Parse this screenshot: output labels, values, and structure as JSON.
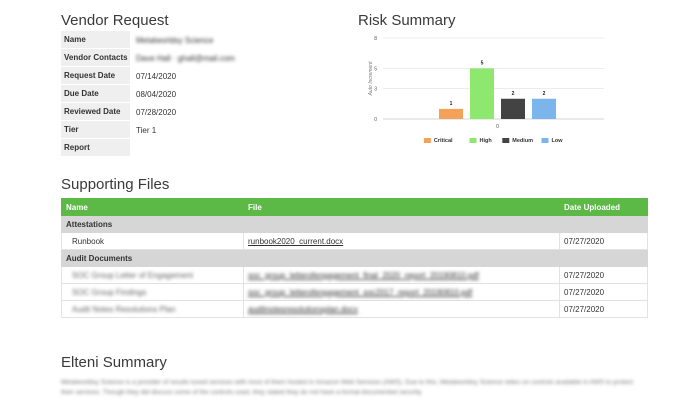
{
  "vendor_request": {
    "title": "Vendor Request",
    "rows": [
      {
        "label": "Name",
        "value": "Metalworldsy Science"
      },
      {
        "label": "Vendor Contacts",
        "value": "Dave Hall · ghall@mail.com"
      },
      {
        "label": "Request Date",
        "value": "07/14/2020"
      },
      {
        "label": "Due Date",
        "value": "08/04/2020"
      },
      {
        "label": "Reviewed Date",
        "value": "07/28/2020"
      },
      {
        "label": "Tier",
        "value": "Tier 1"
      },
      {
        "label": "Report",
        "value": ""
      }
    ]
  },
  "risk_summary": {
    "title": "Risk Summary"
  },
  "chart_data": {
    "type": "bar",
    "ylabel": "Auto Increment",
    "xlabel": "",
    "ylim": [
      0,
      8
    ],
    "yticks": [
      0,
      3,
      5,
      8
    ],
    "categories": [
      "0"
    ],
    "series": [
      {
        "name": "Critical",
        "values": [
          1
        ],
        "color": "#f4a259"
      },
      {
        "name": "High",
        "values": [
          5
        ],
        "color": "#8ee86f"
      },
      {
        "name": "Medium",
        "values": [
          2
        ],
        "color": "#434343"
      },
      {
        "name": "Low",
        "values": [
          2
        ],
        "color": "#7cb5ec"
      }
    ],
    "legend_position": "bottom"
  },
  "supporting_files": {
    "title": "Supporting Files",
    "columns": [
      "Name",
      "File",
      "Date Uploaded"
    ],
    "groups": [
      {
        "group": "Attestations",
        "rows": [
          {
            "name": "Runbook",
            "file": "runbook2020_current.docx",
            "date": "07/27/2020"
          }
        ]
      },
      {
        "group": "Audit Documents",
        "rows": [
          {
            "name": "SOC Group Letter of Engagement",
            "file": "soc_group_letterofengagement_final_2020_report_20190810.pdf",
            "date": "07/27/2020"
          },
          {
            "name": "SOC Group Findings",
            "file": "soc_group_letterofengagement_soc2017_report_20190810.pdf",
            "date": "07/27/2020"
          },
          {
            "name": "Audit Notes Resolutions Plan",
            "file": "auditnotesresolutionsplan.docx",
            "date": "07/27/2020"
          }
        ]
      }
    ]
  },
  "elteni_summary": {
    "title": "Elteni Summary",
    "text": "Metalworldsy Science is a provider of results tuned services with most of them hosted in Amazon Web Services (AWS). Due to this, Metalworldsy Science relies on controls available in AWS to protect their services. Though they did discuss some of the controls used, they stated they do not have a formal documented security"
  }
}
